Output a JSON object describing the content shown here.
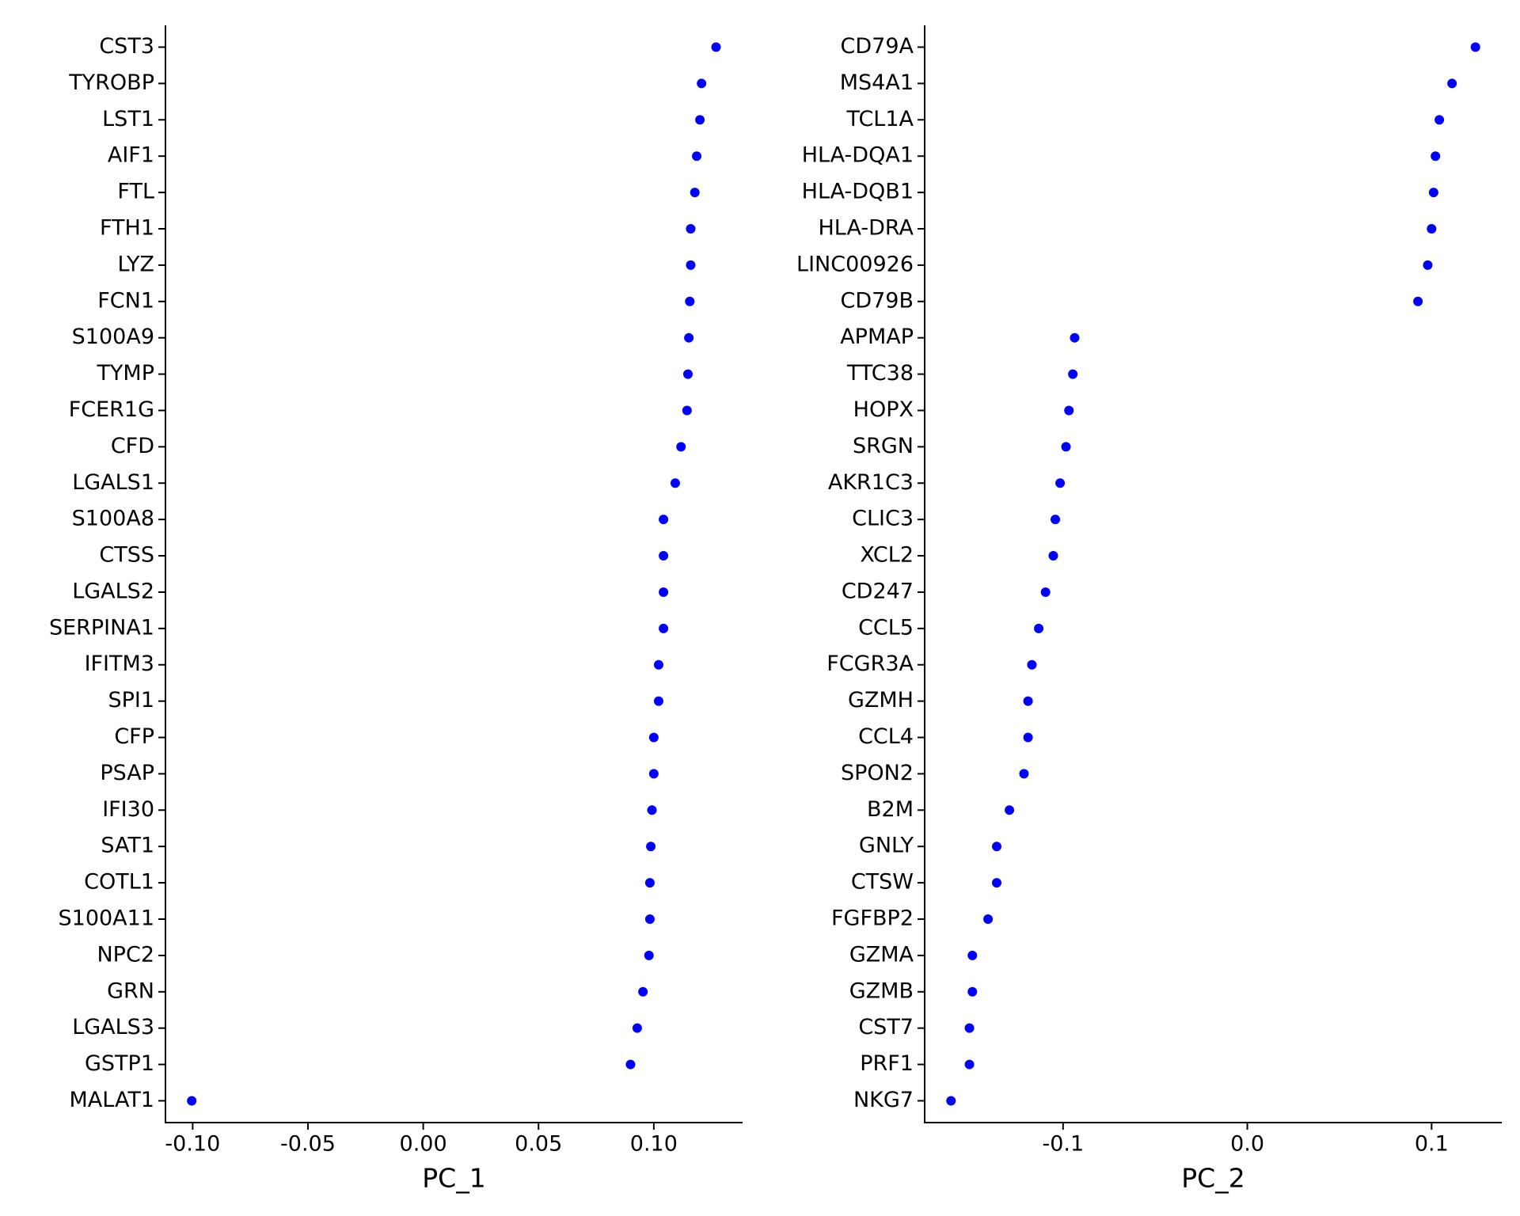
{
  "chart_data": [
    {
      "type": "scatter",
      "xlabel": "PC_1",
      "color": "#0000ff",
      "categories": [
        "CST3",
        "TYROBP",
        "LST1",
        "AIF1",
        "FTL",
        "FTH1",
        "LYZ",
        "FCN1",
        "S100A9",
        "TYMP",
        "FCER1G",
        "CFD",
        "LGALS1",
        "S100A8",
        "CTSS",
        "LGALS2",
        "SERPINA1",
        "IFITM3",
        "SPI1",
        "CFP",
        "PSAP",
        "IFI30",
        "SAT1",
        "COTL1",
        "S100A11",
        "NPC2",
        "GRN",
        "LGALS3",
        "GSTP1",
        "MALAT1"
      ],
      "values": [
        0.127,
        0.1207,
        0.12,
        0.1186,
        0.1178,
        0.116,
        0.116,
        0.1156,
        0.1152,
        0.1148,
        0.1144,
        0.1118,
        0.1093,
        0.1042,
        0.1042,
        0.1042,
        0.1042,
        0.1021,
        0.1021,
        0.1,
        0.1,
        0.0992,
        0.0987,
        0.0983,
        0.0983,
        0.0979,
        0.0953,
        0.0928,
        0.0899,
        -0.1004
      ],
      "xlim": [
        -0.1118,
        0.1385
      ],
      "xticks": [
        {
          "value": -0.1,
          "label": "-0.10"
        },
        {
          "value": -0.05,
          "label": "-0.05"
        },
        {
          "value": 0,
          "label": "0.00"
        },
        {
          "value": 0.05,
          "label": "0.05"
        },
        {
          "value": 0.1,
          "label": "0.10"
        }
      ]
    },
    {
      "type": "scatter",
      "xlabel": "PC_2",
      "color": "#0000ff",
      "categories": [
        "CD79A",
        "MS4A1",
        "TCL1A",
        "HLA-DQA1",
        "HLA-DQB1",
        "HLA-DRA",
        "LINC00926",
        "CD79B",
        "APMAP",
        "TTC38",
        "HOPX",
        "SRGN",
        "AKR1C3",
        "CLIC3",
        "XCL2",
        "CD247",
        "CCL5",
        "FCGR3A",
        "GZMH",
        "CCL4",
        "SPON2",
        "B2M",
        "GNLY",
        "CTSW",
        "FGFBP2",
        "GZMA",
        "GZMB",
        "CST7",
        "PRF1",
        "NKG7"
      ],
      "values": [
        0.1238,
        0.1111,
        0.1042,
        0.1021,
        0.1011,
        0.1,
        0.0979,
        0.0926,
        -0.0937,
        -0.0947,
        -0.0968,
        -0.0984,
        -0.1016,
        -0.1042,
        -0.1053,
        -0.1095,
        -0.1132,
        -0.1169,
        -0.119,
        -0.119,
        -0.1212,
        -0.1291,
        -0.136,
        -0.136,
        -0.1407,
        -0.1492,
        -0.1492,
        -0.1508,
        -0.1508,
        -0.1608
      ],
      "xlim": [
        -0.1751,
        0.1381
      ],
      "xticks": [
        -0.1,
        {
          "value": 0,
          "label": "0.0"
        },
        0.1
      ]
    }
  ]
}
